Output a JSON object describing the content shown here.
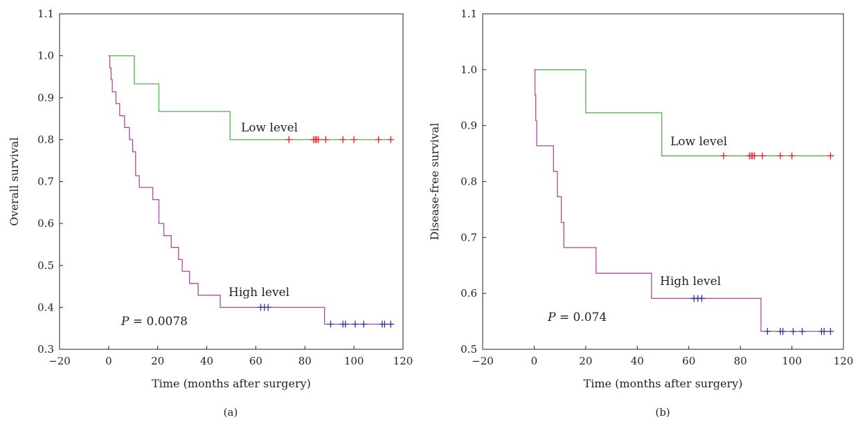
{
  "chart_data": [
    {
      "type": "line",
      "subplot_label": "(a)",
      "xlabel": "Time (months after surgery)",
      "ylabel": "Overall survival",
      "xlim": [
        -20,
        120
      ],
      "ylim": [
        0.3,
        1.1
      ],
      "xticks": [
        -20,
        0,
        20,
        40,
        60,
        80,
        100,
        120
      ],
      "yticks": [
        0.3,
        0.4,
        0.5,
        0.6,
        0.7,
        0.8,
        0.9,
        1.0,
        1.1
      ],
      "xtick_labels": [
        "−20",
        "0",
        "20",
        "40",
        "60",
        "80",
        "100",
        "120"
      ],
      "ytick_labels": [
        "0.3",
        "0.4",
        "0.5",
        "0.6",
        "0.7",
        "0.8",
        "0.9",
        "1.0",
        "1.1"
      ],
      "grid": false,
      "pvalue_prefix": "P",
      "pvalue_text": " = 0.0078",
      "series": [
        {
          "name": "Low level",
          "color": "#4cb848",
          "censor_color": "#ed1c24",
          "step_x": [
            0,
            10.5,
            20.5,
            49.5,
            115
          ],
          "step_y": [
            1.0,
            0.933,
            0.867,
            0.8,
            0.8
          ],
          "censor_x": [
            73.5,
            83.5,
            84.2,
            84.8,
            85.5,
            88.5,
            95.5,
            100,
            110,
            115
          ],
          "censor_y": 0.8
        },
        {
          "name": "High level",
          "color": "#b5469b",
          "censor_color": "#2e3192",
          "step_x": [
            0,
            0.5,
            1,
            1.5,
            3,
            4.5,
            6.5,
            8.5,
            9.8,
            11,
            12.5,
            18,
            20.5,
            22.5,
            25.5,
            28.5,
            30,
            33,
            36.5,
            45.5,
            88,
            115
          ],
          "step_y": [
            1.0,
            0.971,
            0.943,
            0.914,
            0.886,
            0.857,
            0.829,
            0.8,
            0.771,
            0.714,
            0.686,
            0.657,
            0.6,
            0.571,
            0.543,
            0.514,
            0.486,
            0.457,
            0.429,
            0.4,
            0.36,
            0.36
          ],
          "censor_x": [
            62,
            63.5,
            65,
            90.5,
            95.5,
            96.5,
            100.5,
            104,
            111.5,
            112.5,
            115
          ],
          "censor_y_values": [
            0.4,
            0.4,
            0.4,
            0.36,
            0.36,
            0.36,
            0.36,
            0.36,
            0.36,
            0.36,
            0.36
          ]
        }
      ]
    },
    {
      "type": "line",
      "subplot_label": "(b)",
      "xlabel": "Time (months after surgery)",
      "ylabel": "Disease-free survival",
      "xlim": [
        -20,
        120
      ],
      "ylim": [
        0.5,
        1.1
      ],
      "xticks": [
        -20,
        0,
        20,
        40,
        60,
        80,
        100,
        120
      ],
      "yticks": [
        0.5,
        0.6,
        0.7,
        0.8,
        0.9,
        1.0,
        1.1
      ],
      "xtick_labels": [
        "−20",
        "0",
        "20",
        "40",
        "60",
        "80",
        "100",
        "120"
      ],
      "ytick_labels": [
        "0.5",
        "0.6",
        "0.7",
        "0.8",
        "0.9",
        "1.0",
        "1.1"
      ],
      "grid": false,
      "pvalue_prefix": "P",
      "pvalue_text": " = 0.074",
      "series": [
        {
          "name": "Low level",
          "color": "#4cb848",
          "censor_color": "#ed1c24",
          "step_x": [
            0,
            20,
            49.5,
            115
          ],
          "step_y": [
            1.0,
            0.923,
            0.846,
            0.846
          ],
          "censor_x": [
            73.5,
            83.5,
            84.2,
            84.8,
            85.5,
            88.5,
            95.5,
            100,
            115
          ],
          "censor_y": 0.846
        },
        {
          "name": "High level",
          "color": "#b5469b",
          "censor_color": "#2e3192",
          "step_x": [
            0,
            0.3,
            0.6,
            1,
            7.5,
            9,
            10.5,
            11.5,
            24,
            45.5,
            88,
            115
          ],
          "step_y": [
            1.0,
            0.955,
            0.909,
            0.864,
            0.818,
            0.773,
            0.727,
            0.682,
            0.636,
            0.591,
            0.532,
            0.532
          ],
          "censor_x": [
            62,
            63.5,
            65,
            90.5,
            95.5,
            96.5,
            100.5,
            104,
            111.5,
            112.5,
            115
          ],
          "censor_y_values": [
            0.591,
            0.591,
            0.591,
            0.532,
            0.532,
            0.532,
            0.532,
            0.532,
            0.532,
            0.532,
            0.532
          ]
        }
      ]
    }
  ]
}
